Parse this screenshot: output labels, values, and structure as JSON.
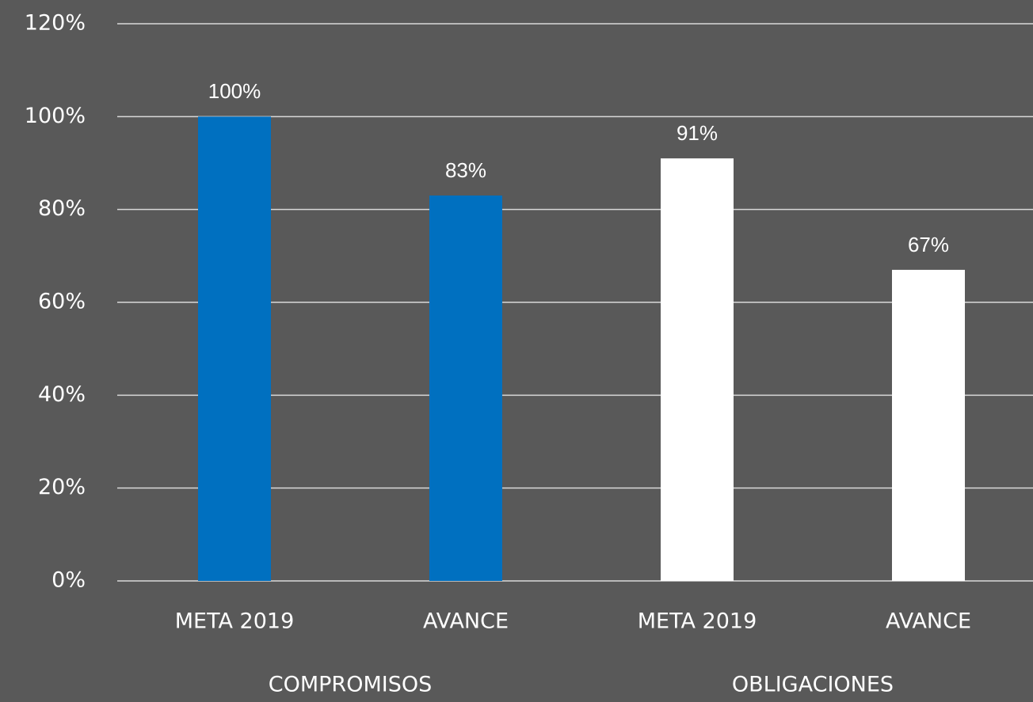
{
  "chart_data": {
    "type": "bar",
    "categories": [
      "META 2019",
      "AVANCE",
      "META 2019",
      "AVANCE"
    ],
    "groups": [
      "COMPROMISOS",
      "OBLIGACIONES"
    ],
    "values": [
      100,
      83,
      91,
      67
    ],
    "value_labels": [
      "100%",
      "83%",
      "91%",
      "67%"
    ],
    "colors": [
      "#0070c0",
      "#0070c0",
      "#ffffff",
      "#ffffff"
    ],
    "ylim": [
      0,
      120
    ],
    "yticks": [
      {
        "value": 0,
        "label": "0%"
      },
      {
        "value": 20,
        "label": "20%"
      },
      {
        "value": 40,
        "label": "40%"
      },
      {
        "value": 60,
        "label": "60%"
      },
      {
        "value": 80,
        "label": "80%"
      },
      {
        "value": 100,
        "label": "100%"
      },
      {
        "value": 120,
        "label": "120%"
      }
    ],
    "grid": true
  }
}
